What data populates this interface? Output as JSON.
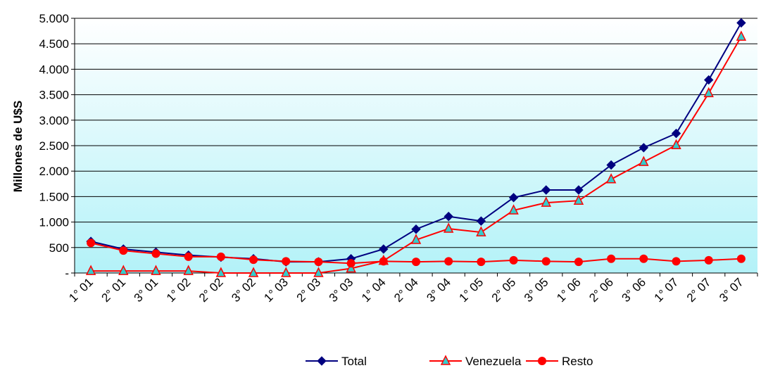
{
  "chart_data": {
    "type": "line",
    "title": "",
    "xlabel": "",
    "ylabel": "Millones de U$S",
    "ylim": [
      0,
      5000
    ],
    "yticks": [
      0,
      500,
      1000,
      1500,
      2000,
      2500,
      3000,
      3500,
      4000,
      4500,
      5000
    ],
    "ytick_labels": [
      "-",
      "500",
      "1.000",
      "1.500",
      "2.000",
      "2.500",
      "3.000",
      "3.500",
      "4.000",
      "4.500",
      "5.000"
    ],
    "grid": true,
    "legend_position": "bottom",
    "categories": [
      "1° 01",
      "2° 01",
      "3° 01",
      "1° 02",
      "2° 02",
      "3° 02",
      "1° 03",
      "2° 03",
      "3° 03",
      "1° 04",
      "2° 04",
      "3° 04",
      "1° 05",
      "2° 05",
      "3° 05",
      "1° 06",
      "2° 06",
      "3° 06",
      "1° 07",
      "2° 07",
      "3° 07"
    ],
    "series": [
      {
        "name": "Total",
        "color": "#000080",
        "marker": "diamond",
        "values": [
          620,
          470,
          410,
          350,
          310,
          280,
          220,
          220,
          280,
          470,
          860,
          1110,
          1020,
          1480,
          1630,
          1630,
          2120,
          2460,
          2740,
          3790,
          4910
        ]
      },
      {
        "name": "Venezuela",
        "color": "#ff0000",
        "marker": "triangle",
        "values": [
          40,
          40,
          40,
          40,
          0,
          0,
          0,
          0,
          90,
          240,
          650,
          870,
          800,
          1230,
          1380,
          1420,
          1840,
          2180,
          2510,
          3530,
          4640
        ]
      },
      {
        "name": "Resto",
        "color": "#ff0000",
        "marker": "circle",
        "values": [
          590,
          440,
          380,
          320,
          320,
          260,
          230,
          220,
          190,
          230,
          220,
          230,
          220,
          250,
          230,
          220,
          280,
          280,
          230,
          250,
          280
        ]
      }
    ]
  }
}
